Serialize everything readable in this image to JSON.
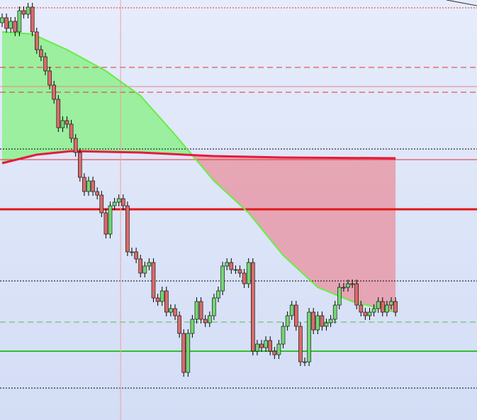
{
  "chart_data": {
    "type": "candlestick",
    "ylim": [
      0,
      592
    ],
    "up_color": "#74d774",
    "down_color": "#d96b6b",
    "wick_color": "#000000",
    "open": [
      560,
      567,
      552,
      562,
      547,
      577,
      572,
      582,
      547,
      522,
      512,
      492,
      472,
      452,
      412,
      422,
      417,
      397,
      377,
      342,
      322,
      337,
      322,
      317,
      292,
      262,
      302,
      307,
      312,
      302,
      237,
      237,
      227,
      207,
      217,
      222,
      172,
      167,
      182,
      152,
      157,
      147,
      122,
      67,
      122,
      142,
      167,
      142,
      137,
      147,
      172,
      182,
      217,
      222,
      212,
      212,
      207,
      192,
      222,
      97,
      107,
      102,
      112,
      97,
      92,
      107,
      132,
      147,
      162,
      132,
      82,
      82,
      152,
      127,
      147,
      132,
      137,
      142,
      162,
      187,
      187,
      192,
      192,
      162,
      152,
      147,
      152,
      157,
      167,
      152,
      162,
      167
    ],
    "high": [
      573,
      573,
      568,
      568,
      583,
      583,
      588,
      588,
      553,
      528,
      518,
      498,
      478,
      458,
      428,
      428,
      423,
      403,
      383,
      348,
      343,
      343,
      328,
      323,
      298,
      308,
      313,
      318,
      318,
      308,
      243,
      243,
      233,
      223,
      228,
      228,
      178,
      188,
      188,
      163,
      163,
      153,
      128,
      128,
      148,
      173,
      173,
      148,
      153,
      178,
      188,
      223,
      228,
      228,
      218,
      218,
      213,
      228,
      228,
      113,
      113,
      118,
      118,
      103,
      113,
      138,
      153,
      168,
      168,
      138,
      88,
      158,
      158,
      153,
      153,
      143,
      148,
      168,
      193,
      193,
      198,
      198,
      198,
      168,
      158,
      158,
      163,
      173,
      173,
      168,
      173,
      173
    ],
    "low": [
      554,
      546,
      546,
      541,
      541,
      566,
      566,
      541,
      516,
      506,
      486,
      466,
      446,
      406,
      406,
      411,
      391,
      371,
      336,
      316,
      316,
      316,
      311,
      286,
      256,
      256,
      296,
      301,
      296,
      231,
      231,
      221,
      201,
      201,
      211,
      166,
      161,
      161,
      146,
      146,
      141,
      116,
      61,
      61,
      116,
      136,
      136,
      131,
      131,
      141,
      166,
      176,
      211,
      206,
      206,
      201,
      186,
      186,
      91,
      91,
      96,
      96,
      91,
      86,
      86,
      101,
      126,
      141,
      126,
      76,
      76,
      76,
      121,
      121,
      126,
      126,
      131,
      136,
      156,
      181,
      181,
      186,
      156,
      146,
      141,
      141,
      146,
      151,
      146,
      146,
      156,
      146
    ],
    "close": [
      567,
      552,
      562,
      547,
      577,
      572,
      582,
      547,
      522,
      512,
      492,
      472,
      452,
      412,
      422,
      417,
      397,
      377,
      342,
      322,
      337,
      322,
      317,
      292,
      262,
      302,
      307,
      312,
      302,
      237,
      237,
      227,
      207,
      217,
      222,
      172,
      167,
      182,
      152,
      157,
      147,
      122,
      67,
      122,
      142,
      167,
      142,
      137,
      147,
      172,
      182,
      217,
      222,
      212,
      212,
      207,
      192,
      222,
      97,
      107,
      102,
      112,
      97,
      92,
      107,
      132,
      147,
      162,
      132,
      82,
      82,
      152,
      127,
      147,
      132,
      137,
      142,
      162,
      187,
      187,
      192,
      192,
      162,
      152,
      147,
      152,
      157,
      167,
      152,
      162,
      167,
      152
    ],
    "moving_averages": [
      {
        "color": "#66ee44",
        "x": [
          0,
          7,
          15,
          24,
          32,
          40,
          49,
          57,
          65,
          73,
          81,
          91
        ],
        "values": [
          547,
          544,
          522,
          492,
          457,
          402,
          337,
          292,
          232,
          187,
          167,
          152
        ]
      },
      {
        "color": "#e8193c",
        "x": [
          0,
          8,
          16,
          32,
          49,
          65,
          91
        ],
        "values": [
          362,
          374,
          379,
          377,
          372,
          370,
          369
        ]
      }
    ],
    "fill_above_color": "#8ef08e",
    "fill_below_color": "#e89aa8",
    "levels": [
      {
        "value": 581,
        "color": "#e03030",
        "style": "dotted",
        "width": 1
      },
      {
        "value": 497,
        "color": "#e03030",
        "style": "dashed",
        "width": 1
      },
      {
        "value": 470,
        "color": "#f08080",
        "style": "solid",
        "width": 1
      },
      {
        "value": 462,
        "color": "#e03030",
        "style": "dashed",
        "width": 1
      },
      {
        "value": 382,
        "color": "#000000",
        "style": "dotted",
        "width": 1
      },
      {
        "value": 367,
        "color": "#e03030",
        "style": "solid",
        "width": 1
      },
      {
        "value": 297,
        "color": "#e01818",
        "style": "solid",
        "width": 3
      },
      {
        "value": 196,
        "color": "#000000",
        "style": "dotted",
        "width": 1
      },
      {
        "value": 138,
        "color": "#50c050",
        "style": "dashed",
        "width": 1
      },
      {
        "value": 97,
        "color": "#30c030",
        "style": "solid",
        "width": 2
      },
      {
        "value": 45,
        "color": "#000000",
        "style": "dotted",
        "width": 1
      }
    ],
    "vline": {
      "x": 27.4,
      "color": "#f0a0a0"
    }
  }
}
